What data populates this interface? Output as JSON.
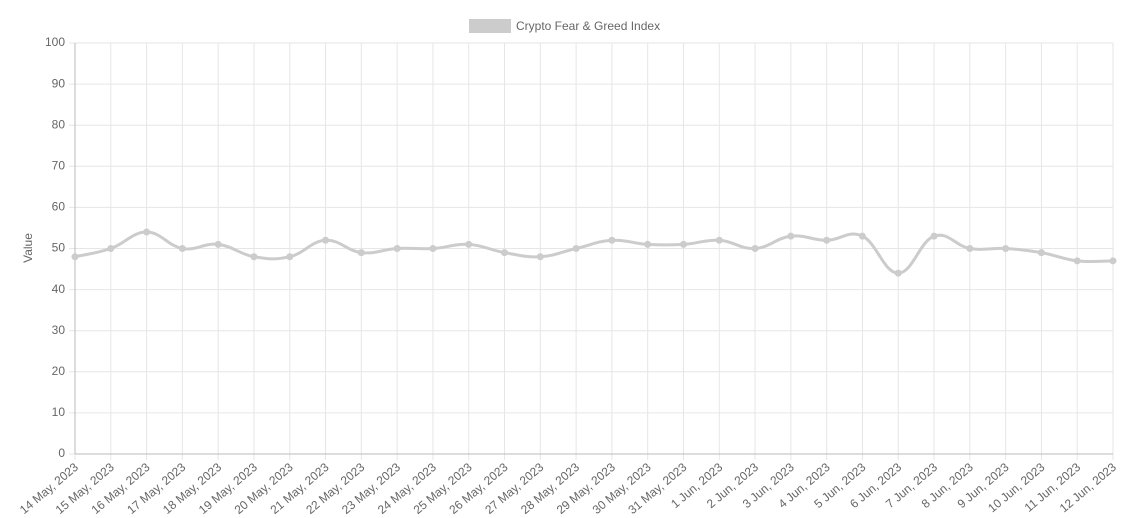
{
  "chart_data": {
    "type": "line",
    "y_label": "Value",
    "categories": [
      "14 May, 2023",
      "15 May, 2023",
      "16 May, 2023",
      "17 May, 2023",
      "18 May, 2023",
      "19 May, 2023",
      "20 May, 2023",
      "21 May, 2023",
      "22 May, 2023",
      "23 May, 2023",
      "24 May, 2023",
      "25 May, 2023",
      "26 May, 2023",
      "27 May, 2023",
      "28 May, 2023",
      "29 May, 2023",
      "30 May, 2023",
      "31 May, 2023",
      "1 Jun, 2023",
      "2 Jun, 2023",
      "3 Jun, 2023",
      "4 Jun, 2023",
      "5 Jun, 2023",
      "6 Jun, 2023",
      "7 Jun, 2023",
      "8 Jun, 2023",
      "9 Jun, 2023",
      "10 Jun, 2023",
      "11 Jun, 2023",
      "12 Jun, 2023"
    ],
    "series": [
      {
        "name": "Crypto Fear & Greed Index",
        "color": "#cccccc",
        "values": [
          48,
          50,
          54,
          50,
          51,
          48,
          48,
          52,
          49,
          50,
          50,
          51,
          49,
          48,
          50,
          52,
          51,
          51,
          52,
          50,
          53,
          52,
          53,
          44,
          53,
          50,
          50,
          49,
          47,
          47
        ]
      }
    ],
    "ylim": [
      0,
      100
    ],
    "yticks": [
      0,
      10,
      20,
      30,
      40,
      50,
      60,
      70,
      80,
      90,
      100
    ],
    "grid": true,
    "legend": "top"
  }
}
